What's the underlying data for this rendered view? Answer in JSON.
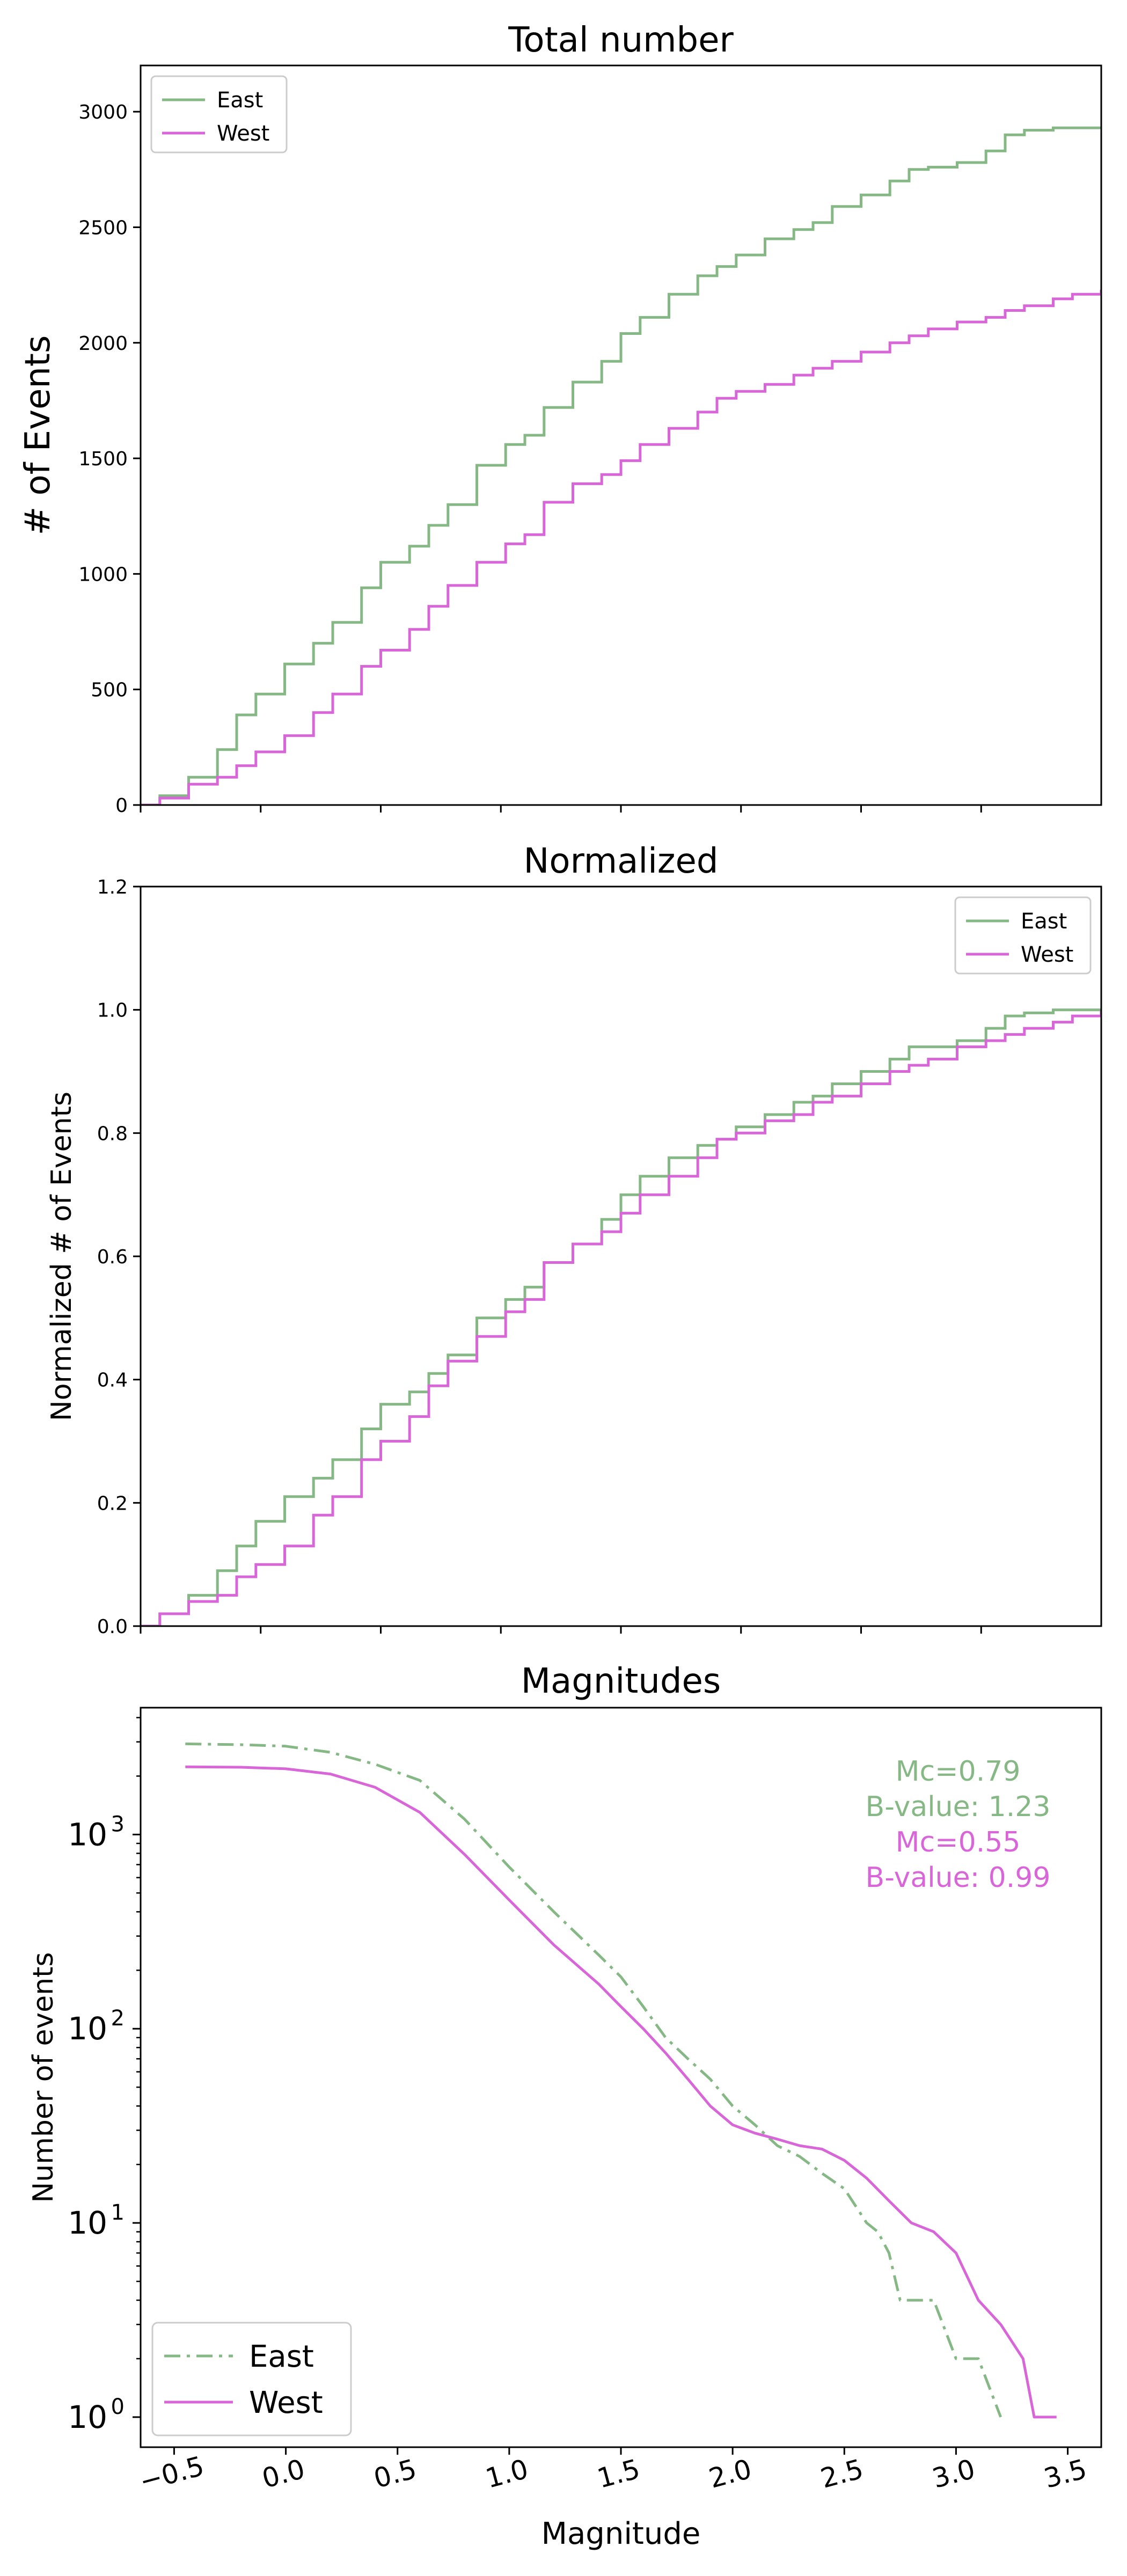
{
  "colors": {
    "east": "#86b886",
    "west": "#d866d8"
  },
  "chart_data": [
    {
      "type": "line",
      "title": "Total number",
      "ylabel": "# of Events",
      "ylim": [
        0,
        3200
      ],
      "yticks": [
        0,
        500,
        1000,
        1500,
        2000,
        2500,
        3000
      ],
      "ytick_labels": [
        "0",
        "500",
        "1000",
        "1500",
        "2000",
        "2500",
        "3000"
      ],
      "xlim": [
        0,
        1
      ],
      "grid": false,
      "legend_position": "upper-left",
      "series": [
        {
          "name": "East",
          "color": "#86b886",
          "line_style": "solid",
          "x": [
            0,
            0.02,
            0.05,
            0.08,
            0.1,
            0.12,
            0.15,
            0.18,
            0.2,
            0.23,
            0.25,
            0.28,
            0.3,
            0.32,
            0.35,
            0.38,
            0.4,
            0.42,
            0.45,
            0.48,
            0.5,
            0.52,
            0.55,
            0.58,
            0.6,
            0.62,
            0.65,
            0.68,
            0.7,
            0.72,
            0.75,
            0.78,
            0.8,
            0.82,
            0.85,
            0.88,
            0.9,
            0.92,
            0.95,
            0.97,
            1.0
          ],
          "y": [
            0,
            40,
            120,
            240,
            390,
            480,
            610,
            700,
            790,
            940,
            1050,
            1120,
            1210,
            1300,
            1470,
            1560,
            1600,
            1720,
            1830,
            1920,
            2040,
            2110,
            2210,
            2290,
            2330,
            2380,
            2450,
            2490,
            2520,
            2590,
            2640,
            2700,
            2750,
            2760,
            2780,
            2830,
            2900,
            2920,
            2930,
            2930,
            2930
          ]
        },
        {
          "name": "West",
          "color": "#d866d8",
          "line_style": "solid",
          "x": [
            0,
            0.02,
            0.05,
            0.08,
            0.1,
            0.12,
            0.15,
            0.18,
            0.2,
            0.23,
            0.25,
            0.28,
            0.3,
            0.32,
            0.35,
            0.38,
            0.4,
            0.42,
            0.45,
            0.48,
            0.5,
            0.52,
            0.55,
            0.58,
            0.6,
            0.62,
            0.65,
            0.68,
            0.7,
            0.72,
            0.75,
            0.78,
            0.8,
            0.82,
            0.85,
            0.88,
            0.9,
            0.92,
            0.95,
            0.97,
            1.0
          ],
          "y": [
            0,
            30,
            90,
            120,
            170,
            230,
            300,
            400,
            480,
            600,
            670,
            760,
            860,
            950,
            1050,
            1130,
            1170,
            1310,
            1390,
            1430,
            1490,
            1560,
            1630,
            1700,
            1760,
            1790,
            1820,
            1860,
            1890,
            1920,
            1960,
            2000,
            2030,
            2060,
            2090,
            2110,
            2140,
            2160,
            2190,
            2210,
            2230
          ]
        }
      ]
    },
    {
      "type": "line",
      "title": "Normalized",
      "ylabel": "Normalized # of Events",
      "ylim": [
        0,
        1.2
      ],
      "yticks": [
        0,
        0.2,
        0.4,
        0.6,
        0.8,
        1.0,
        1.2
      ],
      "ytick_labels": [
        "0.0",
        "0.2",
        "0.4",
        "0.6",
        "0.8",
        "1.0",
        "1.2"
      ],
      "xlim": [
        0,
        1
      ],
      "grid": false,
      "legend_position": "upper-right",
      "series": [
        {
          "name": "East",
          "color": "#86b886",
          "line_style": "solid",
          "x": [
            0,
            0.02,
            0.05,
            0.08,
            0.1,
            0.12,
            0.15,
            0.18,
            0.2,
            0.23,
            0.25,
            0.28,
            0.3,
            0.32,
            0.35,
            0.38,
            0.4,
            0.42,
            0.45,
            0.48,
            0.5,
            0.52,
            0.55,
            0.58,
            0.6,
            0.62,
            0.65,
            0.68,
            0.7,
            0.72,
            0.75,
            0.78,
            0.8,
            0.82,
            0.85,
            0.88,
            0.9,
            0.92,
            0.95,
            0.97,
            1.0
          ],
          "y": [
            0,
            0.02,
            0.05,
            0.09,
            0.13,
            0.17,
            0.21,
            0.24,
            0.27,
            0.32,
            0.36,
            0.38,
            0.41,
            0.44,
            0.5,
            0.53,
            0.55,
            0.59,
            0.62,
            0.66,
            0.7,
            0.73,
            0.76,
            0.78,
            0.79,
            0.81,
            0.83,
            0.85,
            0.86,
            0.88,
            0.9,
            0.92,
            0.94,
            0.94,
            0.95,
            0.97,
            0.99,
            0.995,
            1.0,
            1.0,
            1.0
          ]
        },
        {
          "name": "West",
          "color": "#d866d8",
          "line_style": "solid",
          "x": [
            0,
            0.02,
            0.05,
            0.08,
            0.1,
            0.12,
            0.15,
            0.18,
            0.2,
            0.23,
            0.25,
            0.28,
            0.3,
            0.32,
            0.35,
            0.38,
            0.4,
            0.42,
            0.45,
            0.48,
            0.5,
            0.52,
            0.55,
            0.58,
            0.6,
            0.62,
            0.65,
            0.68,
            0.7,
            0.72,
            0.75,
            0.78,
            0.8,
            0.82,
            0.85,
            0.88,
            0.9,
            0.92,
            0.95,
            0.97,
            1.0
          ],
          "y": [
            0,
            0.02,
            0.04,
            0.05,
            0.08,
            0.1,
            0.13,
            0.18,
            0.21,
            0.27,
            0.3,
            0.34,
            0.39,
            0.43,
            0.47,
            0.51,
            0.53,
            0.59,
            0.62,
            0.64,
            0.67,
            0.7,
            0.73,
            0.76,
            0.79,
            0.8,
            0.82,
            0.83,
            0.85,
            0.86,
            0.88,
            0.9,
            0.91,
            0.92,
            0.94,
            0.95,
            0.96,
            0.97,
            0.98,
            0.99,
            1.0
          ]
        }
      ]
    },
    {
      "type": "line",
      "title": "Magnitudes",
      "xlabel": "Magnitude",
      "ylabel": "Number of events",
      "yscale": "log",
      "ylim": [
        0.7,
        4500
      ],
      "xlim": [
        -0.65,
        3.65
      ],
      "xticks": [
        -0.5,
        0.0,
        0.5,
        1.0,
        1.5,
        2.0,
        2.5,
        3.0,
        3.5
      ],
      "xtick_labels": [
        "−0.5",
        "0.0",
        "0.5",
        "1.0",
        "1.5",
        "2.0",
        "2.5",
        "3.0",
        "3.5"
      ],
      "yticks": [
        1,
        10,
        100,
        1000
      ],
      "ytick_labels": [
        {
          "base": "10",
          "exp": "0"
        },
        {
          "base": "10",
          "exp": "1"
        },
        {
          "base": "10",
          "exp": "2"
        },
        {
          "base": "10",
          "exp": "3"
        }
      ],
      "grid": false,
      "legend_position": "lower-left",
      "annotations": [
        {
          "text": "Mc=0.79",
          "color": "#86b886"
        },
        {
          "text": "B-value: 1.23",
          "color": "#86b886"
        },
        {
          "text": "Mc=0.55",
          "color": "#d866d8"
        },
        {
          "text": "B-value: 0.99",
          "color": "#d866d8"
        }
      ],
      "series": [
        {
          "name": "East",
          "color": "#86b886",
          "line_style": "dashdot",
          "x": [
            -0.45,
            -0.2,
            0.0,
            0.2,
            0.4,
            0.6,
            0.8,
            1.0,
            1.2,
            1.4,
            1.5,
            1.6,
            1.7,
            1.8,
            1.9,
            2.0,
            2.1,
            2.2,
            2.3,
            2.4,
            2.5,
            2.6,
            2.65,
            2.7,
            2.75,
            2.8,
            2.9,
            3.0,
            3.1,
            3.2
          ],
          "y": [
            2930,
            2900,
            2850,
            2650,
            2300,
            1900,
            1200,
            680,
            400,
            240,
            185,
            130,
            90,
            70,
            55,
            40,
            32,
            25,
            22,
            18,
            15,
            10,
            9,
            7,
            4,
            4,
            4,
            2,
            2,
            1
          ]
        },
        {
          "name": "West",
          "color": "#d866d8",
          "line_style": "solid",
          "x": [
            -0.45,
            -0.2,
            0.0,
            0.2,
            0.4,
            0.6,
            0.8,
            1.0,
            1.2,
            1.4,
            1.5,
            1.6,
            1.7,
            1.8,
            1.9,
            2.0,
            2.1,
            2.2,
            2.3,
            2.4,
            2.5,
            2.6,
            2.7,
            2.8,
            2.9,
            3.0,
            3.1,
            3.2,
            3.3,
            3.35,
            3.45
          ],
          "y": [
            2230,
            2220,
            2180,
            2050,
            1750,
            1300,
            790,
            460,
            270,
            170,
            130,
            100,
            75,
            55,
            40,
            32,
            29,
            27,
            25,
            24,
            21,
            17,
            13,
            10,
            9,
            7,
            4,
            3,
            2,
            1,
            1
          ]
        }
      ]
    }
  ]
}
